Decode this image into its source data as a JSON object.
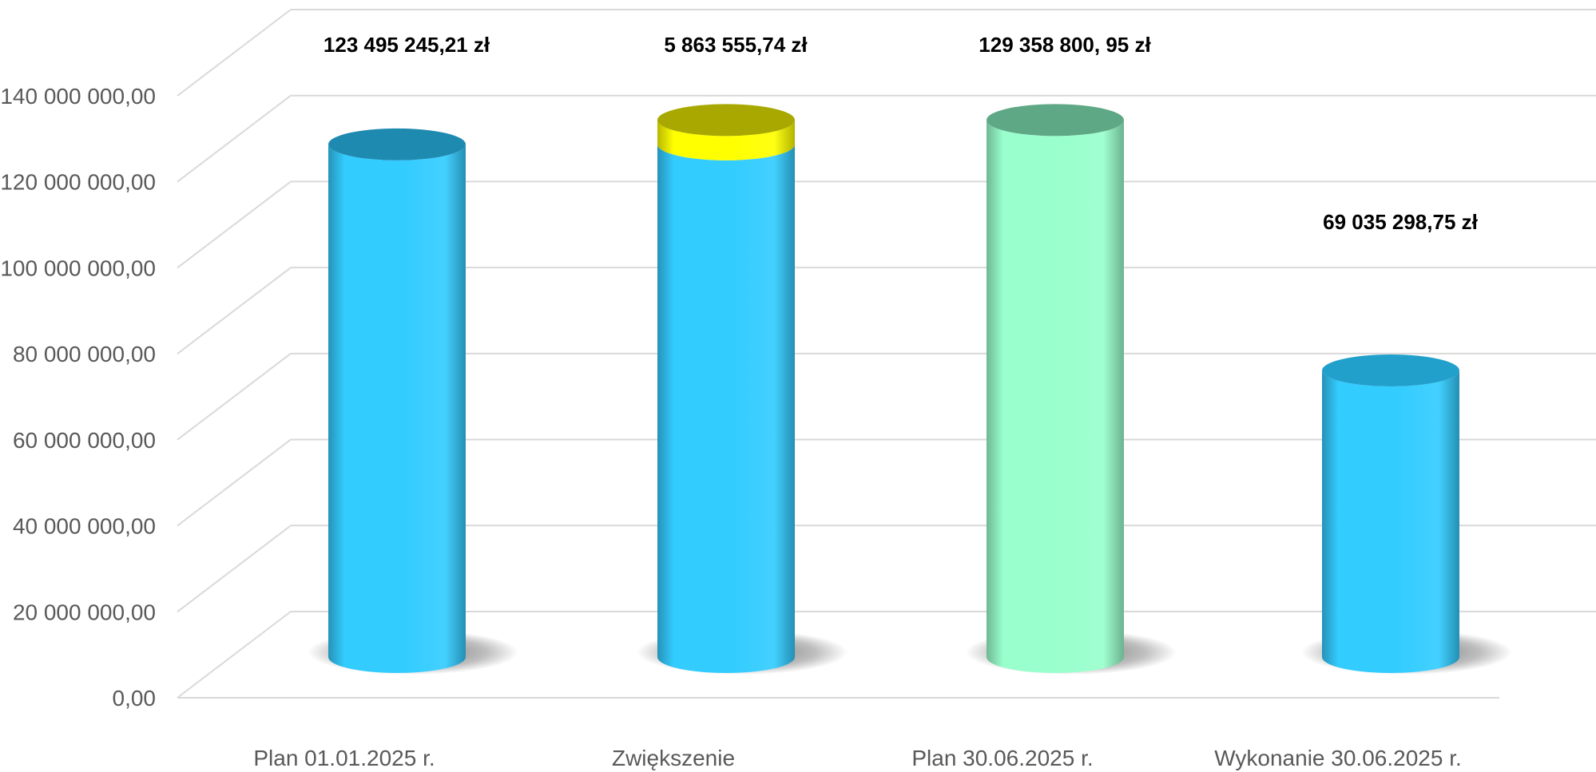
{
  "chart_data": {
    "type": "bar",
    "style": "3d-cylinder",
    "categories": [
      "Plan 01.01.2025 r.",
      "Zwiększenie",
      "Plan 30.06.2025 r.",
      "Wykonanie 30.06.2025 r."
    ],
    "stacks": [
      {
        "category": "Plan 01.01.2025 r.",
        "segments": [
          {
            "value": 123495245.21,
            "color": "#33ccff",
            "top_color": "#1f8ab0"
          }
        ],
        "label": "123 495 245,21 zł"
      },
      {
        "category": "Zwiększenie",
        "segments": [
          {
            "value": 123495245.21,
            "color": "#33ccff",
            "top_color": "#1f8ab0"
          },
          {
            "value": 5863555.74,
            "color": "#ffff00",
            "top_color": "#a8a800"
          }
        ],
        "label": "5 863 555,74 zł"
      },
      {
        "category": "Plan 30.06.2025 r.",
        "segments": [
          {
            "value": 129358800.95,
            "color": "#99ffcc",
            "top_color": "#5fa886"
          }
        ],
        "label": "129 358 800, 95 zł"
      },
      {
        "category": "Wykonanie 30.06.2025 r.",
        "segments": [
          {
            "value": 69035298.75,
            "color": "#33ccff",
            "top_color": "#22a0cc"
          }
        ],
        "label": "69 035 298,75 zł"
      }
    ],
    "yticks": [
      "0,00",
      "20 000 000,00",
      "40 000 000,00",
      "60 000 000,00",
      "80 000 000,00",
      "100 000 000,00",
      "120 000 000,00",
      "140 000 000,00"
    ],
    "ylim": [
      0,
      140000000
    ],
    "grid": true,
    "legend": "none",
    "title": "",
    "xlabel": "",
    "ylabel": ""
  }
}
